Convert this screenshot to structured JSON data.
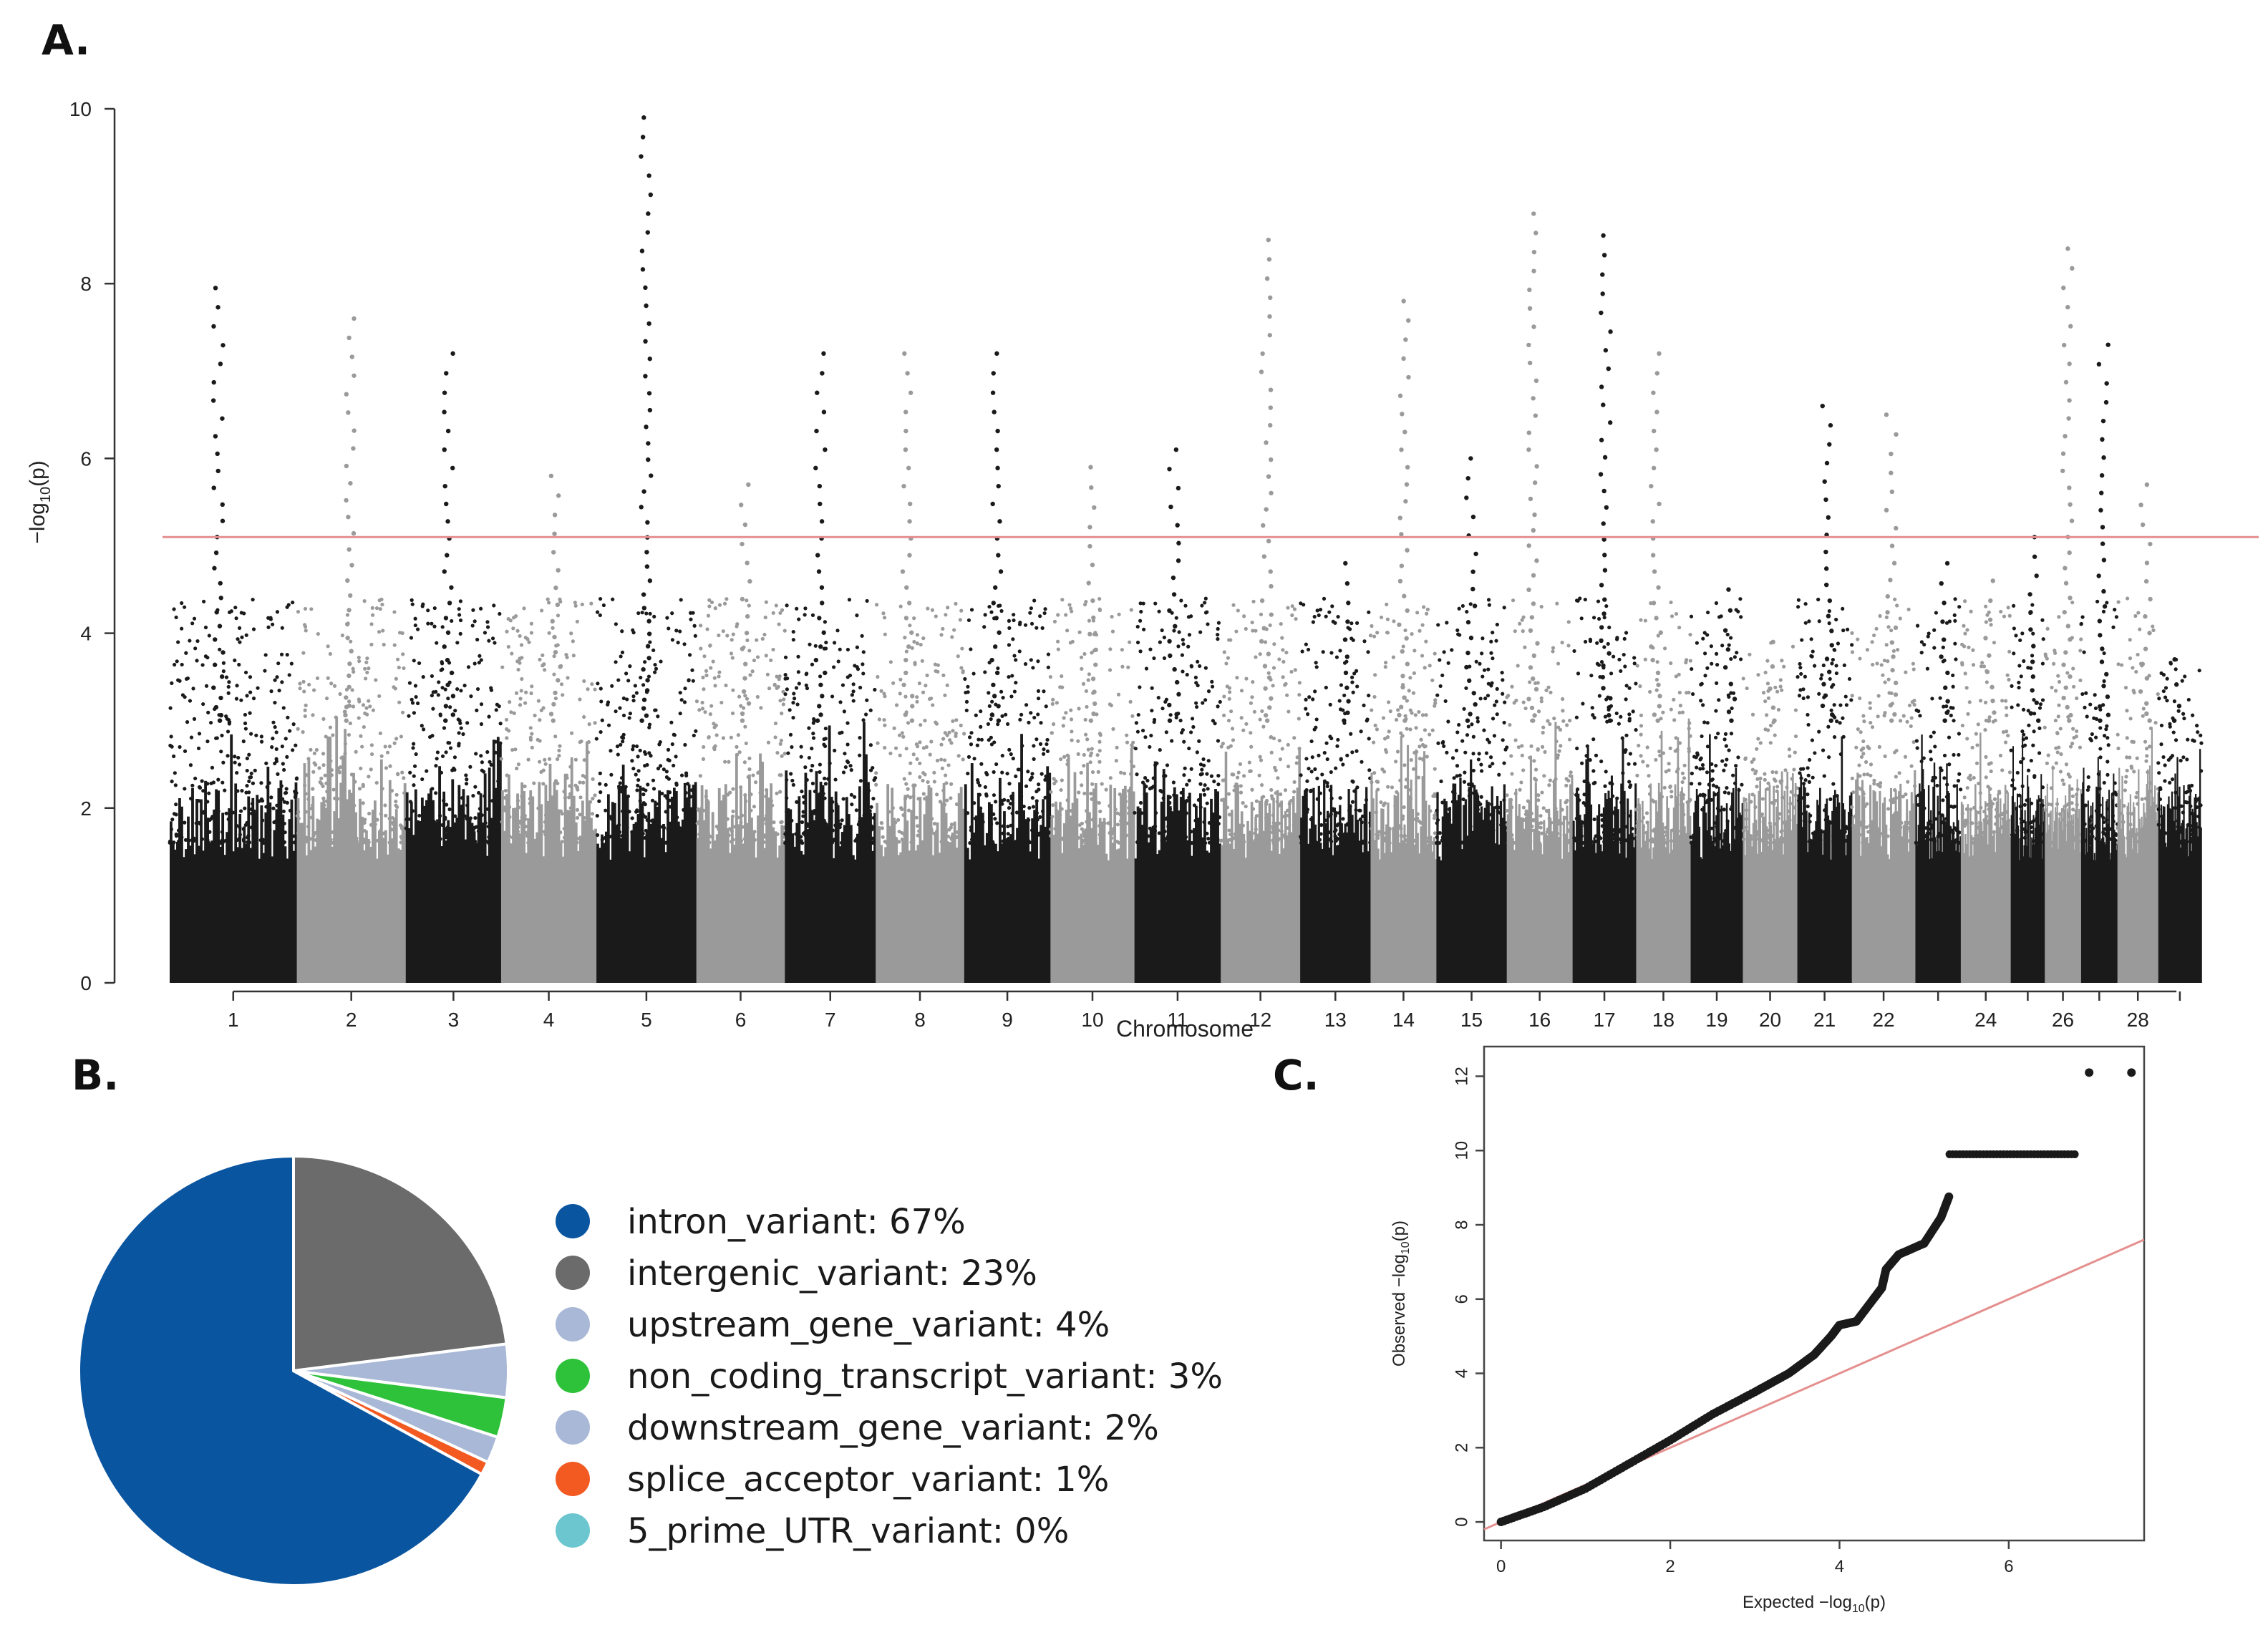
{
  "panels": {
    "a": "A.",
    "b": "B.",
    "c": "C."
  },
  "chart_data": [
    {
      "id": "A",
      "type": "scatter",
      "subtype": "manhattan",
      "title": "",
      "xlabel": "Chromosome",
      "ylabel_main": "−log",
      "ylabel_sub": "10",
      "ylabel_tail": "(p)",
      "ylim": [
        0,
        10
      ],
      "yticks": [
        "0",
        "2",
        "4",
        "6",
        "8",
        "10"
      ],
      "threshold": 5.1,
      "colors": {
        "odd": "#1a1a1a",
        "even": "#9a9a9a",
        "threshold": "#e58f8f"
      },
      "x_tick_labels": [
        "1",
        "2",
        "3",
        "4",
        "5",
        "6",
        "7",
        "8",
        "9",
        "10",
        "11",
        "12",
        "13",
        "14",
        "15",
        "16",
        "17",
        "18",
        "19",
        "20",
        "21",
        "22",
        "24",
        "26",
        "28"
      ],
      "chromosomes": [
        {
          "chr": 1,
          "label": "1",
          "start": 0,
          "end": 5.6,
          "peak": 7.95
        },
        {
          "chr": 2,
          "label": "2",
          "start": 5.6,
          "end": 10.4,
          "peak": 7.6
        },
        {
          "chr": 3,
          "label": "3",
          "start": 10.4,
          "end": 14.6,
          "peak": 7.2
        },
        {
          "chr": 4,
          "label": "4",
          "start": 14.6,
          "end": 18.8,
          "peak": 5.8
        },
        {
          "chr": 5,
          "label": "5",
          "start": 18.8,
          "end": 23.2,
          "peak": 9.9
        },
        {
          "chr": 6,
          "label": "6",
          "start": 23.2,
          "end": 27.1,
          "peak": 5.7
        },
        {
          "chr": 7,
          "label": "7",
          "start": 27.1,
          "end": 31.1,
          "peak": 7.2
        },
        {
          "chr": 8,
          "label": "8",
          "start": 31.1,
          "end": 35.0,
          "peak": 7.2
        },
        {
          "chr": 9,
          "label": "9",
          "start": 35.0,
          "end": 38.8,
          "peak": 7.2
        },
        {
          "chr": 10,
          "label": "10",
          "start": 38.8,
          "end": 42.5,
          "peak": 5.9
        },
        {
          "chr": 11,
          "label": "11",
          "start": 42.5,
          "end": 46.3,
          "peak": 6.1
        },
        {
          "chr": 12,
          "label": "12",
          "start": 46.3,
          "end": 49.8,
          "peak": 8.5
        },
        {
          "chr": 13,
          "label": "13",
          "start": 49.8,
          "end": 52.9,
          "peak": 4.8
        },
        {
          "chr": 14,
          "label": "14",
          "start": 52.9,
          "end": 55.8,
          "peak": 7.8
        },
        {
          "chr": 15,
          "label": "15",
          "start": 55.8,
          "end": 58.9,
          "peak": 6.0
        },
        {
          "chr": 16,
          "label": "16",
          "start": 58.9,
          "end": 61.8,
          "peak": 8.8
        },
        {
          "chr": 17,
          "label": "17",
          "start": 61.8,
          "end": 64.6,
          "peak": 8.55
        },
        {
          "chr": 18,
          "label": "18",
          "start": 64.6,
          "end": 67.0,
          "peak": 7.2
        },
        {
          "chr": 19,
          "label": "19",
          "start": 67.0,
          "end": 69.3,
          "peak": 4.5
        },
        {
          "chr": 20,
          "label": "20",
          "start": 69.3,
          "end": 71.7,
          "peak": 3.9
        },
        {
          "chr": 21,
          "label": "21",
          "start": 71.7,
          "end": 74.1,
          "peak": 6.6
        },
        {
          "chr": 22,
          "label": "22",
          "start": 74.1,
          "end": 76.9,
          "peak": 6.5
        },
        {
          "chr": 23,
          "label": "",
          "start": 76.9,
          "end": 78.9,
          "peak": 4.8
        },
        {
          "chr": 24,
          "label": "24",
          "start": 78.9,
          "end": 81.1,
          "peak": 4.6
        },
        {
          "chr": 25,
          "label": "",
          "start": 81.1,
          "end": 82.6,
          "peak": 5.1
        },
        {
          "chr": 26,
          "label": "26",
          "start": 82.6,
          "end": 84.2,
          "peak": 8.4
        },
        {
          "chr": 27,
          "label": "",
          "start": 84.2,
          "end": 85.8,
          "peak": 7.3
        },
        {
          "chr": 28,
          "label": "28",
          "start": 85.8,
          "end": 87.6,
          "peak": 5.7
        },
        {
          "chr": 29,
          "label": "",
          "start": 87.6,
          "end": 89.5,
          "peak": 3.7
        }
      ]
    },
    {
      "id": "B",
      "type": "pie",
      "title": "",
      "slices": [
        {
          "label": "intron_variant",
          "value": 67,
          "legend": "intron_variant: 67%",
          "color": "#0a55a0"
        },
        {
          "label": "intergenic_variant",
          "value": 23,
          "legend": "intergenic_variant: 23%",
          "color": "#6b6b6b"
        },
        {
          "label": "upstream_gene_variant",
          "value": 4,
          "legend": "upstream_gene_variant: 4%",
          "color": "#a8b8d6"
        },
        {
          "label": "non_coding_transcript_variant",
          "value": 3,
          "legend": "non_coding_transcript_variant: 3%",
          "color": "#2ec23a"
        },
        {
          "label": "downstream_gene_variant",
          "value": 2,
          "legend": "downstream_gene_variant: 2%",
          "color": "#a8b8d6"
        },
        {
          "label": "splice_acceptor_variant",
          "value": 1,
          "legend": "splice_acceptor_variant: 1%",
          "color": "#f25a22"
        },
        {
          "label": "5_prime_UTR_variant",
          "value": 0,
          "legend": "5_prime_UTR_variant: 0%",
          "color": "#6cc6cf"
        }
      ],
      "start_angle_deg": 0,
      "direction": "clockwise"
    },
    {
      "id": "C",
      "type": "scatter",
      "subtype": "qq",
      "title": "",
      "xlabel": "Expected  −log",
      "xlabel_sub": "10",
      "xlabel_tail": "(p)",
      "ylabel": "Observed  −log",
      "ylabel_sub": "10",
      "ylabel_tail": "(p)",
      "xlim": [
        -0.2,
        7.6
      ],
      "ylim": [
        -0.5,
        12.8
      ],
      "xticks": [
        "0",
        "2",
        "4",
        "6"
      ],
      "yticks": [
        "0",
        "2",
        "4",
        "6",
        "8",
        "10",
        "12"
      ],
      "reference_line": {
        "slope": 1,
        "intercept": 0
      },
      "observed_curve": [
        [
          0,
          0
        ],
        [
          0.5,
          0.4
        ],
        [
          1.0,
          0.9
        ],
        [
          1.5,
          1.55
        ],
        [
          2.0,
          2.2
        ],
        [
          2.5,
          2.9
        ],
        [
          3.0,
          3.5
        ],
        [
          3.4,
          4.0
        ],
        [
          3.7,
          4.5
        ],
        [
          3.9,
          5.0
        ],
        [
          4.0,
          5.3
        ],
        [
          4.2,
          5.4
        ],
        [
          4.4,
          6.0
        ],
        [
          4.5,
          6.3
        ],
        [
          4.55,
          6.8
        ],
        [
          4.7,
          7.2
        ],
        [
          5.0,
          7.5
        ],
        [
          5.2,
          8.2
        ],
        [
          5.3,
          8.8
        ]
      ],
      "plateau": {
        "y": 9.9,
        "x_start": 5.3,
        "x_end": 6.8
      },
      "top_points": [
        [
          6.95,
          12.1
        ],
        [
          7.45,
          12.1
        ]
      ],
      "colors": {
        "points": "#1a1a1a",
        "reference": "#e58f8f"
      }
    }
  ]
}
